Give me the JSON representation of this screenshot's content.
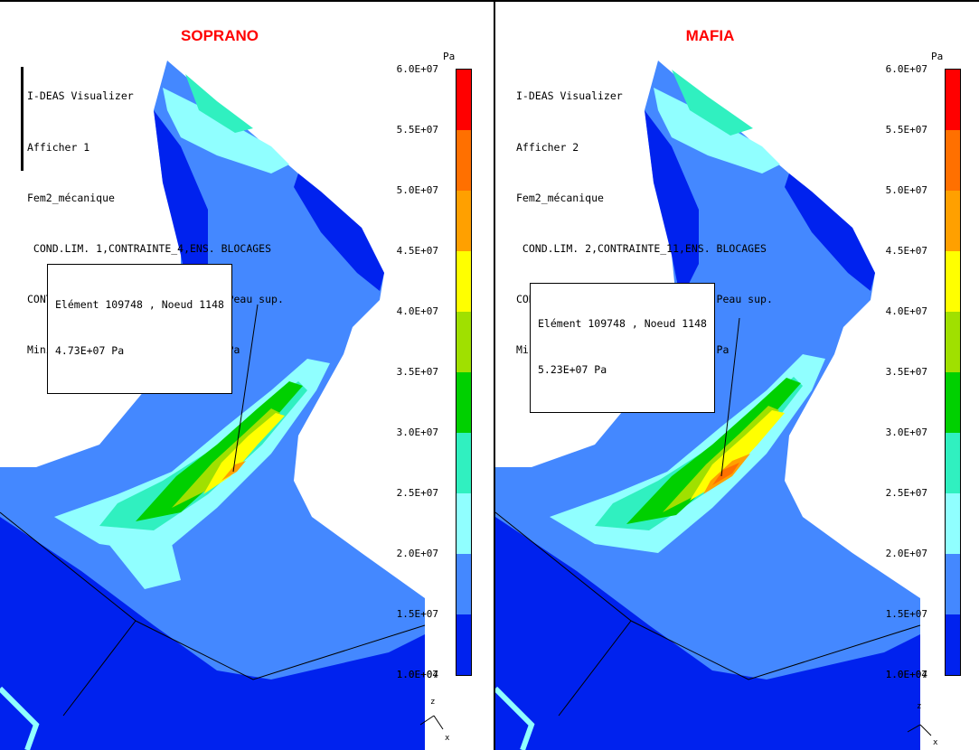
{
  "units": "Pa",
  "legend": {
    "ticks": [
      "6.0E+07",
      "5.5E+07",
      "5.0E+07",
      "4.5E+07",
      "4.0E+07",
      "3.5E+07",
      "3.0E+07",
      "2.5E+07",
      "2.0E+07",
      "1.5E+07",
      "1.0E+07",
      "1.0E+04"
    ],
    "colors": [
      "#ff0000",
      "#ff7000",
      "#ffa000",
      "#ffff00",
      "#a0e000",
      "#00d000",
      "#30f0c0",
      "#90ffff",
      "#4488ff",
      "#0022ee"
    ]
  },
  "panels": [
    {
      "title": "SOPRANO",
      "header": [
        "I-DEAS Visualizer",
        "Afficher 1",
        "Fem2_mécanique",
        " COND.LIM. 1,CONTRAINTE_4,ENS. BLOCAGES",
        "CONTRAINTE  Von Mises  Moyenné  Peau sup.",
        "Mini: 9.1E+04 Pa  Maxi: 5.9E+07 Pa"
      ],
      "callout": [
        "Elément 109748 , Noeud 1148",
        "4.73E+07 Pa"
      ],
      "axes": {
        "z": "z",
        "x": "x"
      }
    },
    {
      "title": "MAFIA",
      "header": [
        "I-DEAS Visualizer",
        "Afficher 2",
        "Fem2_mécanique",
        " COND.LIM. 2,CONTRAINTE_11,ENS. BLOCAGES",
        "CONTRAINTE  Von Mises  Moyenné  Peau sup.",
        "Mini: 1.1E+05 Pa  Maxi: 6.2E+07 Pa"
      ],
      "callout": [
        "Elément 109748 , Noeud 1148",
        "5.23E+07 Pa"
      ],
      "axes": {
        "z": "z",
        "x": "x"
      }
    }
  ]
}
